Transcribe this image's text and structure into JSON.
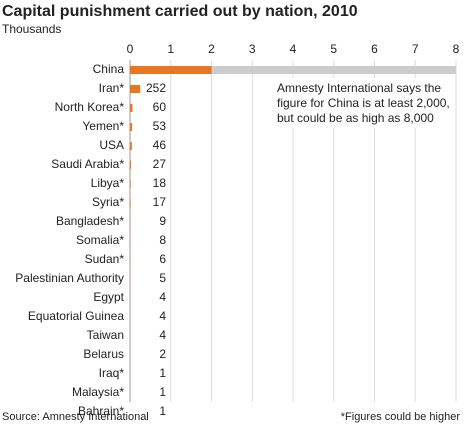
{
  "chart_data": {
    "type": "hbar",
    "title": "Capital punishment carried out by nation, 2010",
    "subtitle": "Thousands",
    "categories": [
      "China",
      "Iran*",
      "North Korea*",
      "Yemen*",
      "USA",
      "Saudi Arabia*",
      "Libya*",
      "Syria*",
      "Bangladesh*",
      "Somalia*",
      "Sudan*",
      "Palestinian Authority",
      "Egypt",
      "Equatorial Guinea",
      "Taiwan",
      "Belarus",
      "Iraq*",
      "Malaysia*",
      "Bahrain*"
    ],
    "values": [
      2,
      0.252,
      0.06,
      0.053,
      0.046,
      0.027,
      0.018,
      0.017,
      0.009,
      0.008,
      0.006,
      0.005,
      0.004,
      0.004,
      0.004,
      0.002,
      0.001,
      0.001,
      0.001
    ],
    "value_labels": [
      null,
      "252",
      "60",
      "53",
      "46",
      "27",
      "18",
      "17",
      "9",
      "8",
      "6",
      "5",
      "4",
      "4",
      "4",
      "2",
      "1",
      "1",
      "1"
    ],
    "range_values": [
      8,
      null,
      null,
      null,
      null,
      null,
      null,
      null,
      null,
      null,
      null,
      null,
      null,
      null,
      null,
      null,
      null,
      null,
      null
    ],
    "color": "#e87722",
    "range_color": "#cccccc",
    "xlim": [
      0,
      8
    ],
    "xticks": [
      0,
      1,
      2,
      3,
      4,
      5,
      6,
      7,
      8
    ],
    "grid": true,
    "annotation": [
      "Amnesty International says the",
      "figure for China is at least 2,000,",
      "but could be as high as 8,000"
    ],
    "source": "Source: Amnesty International",
    "footnote": "*Figures could be higher"
  }
}
